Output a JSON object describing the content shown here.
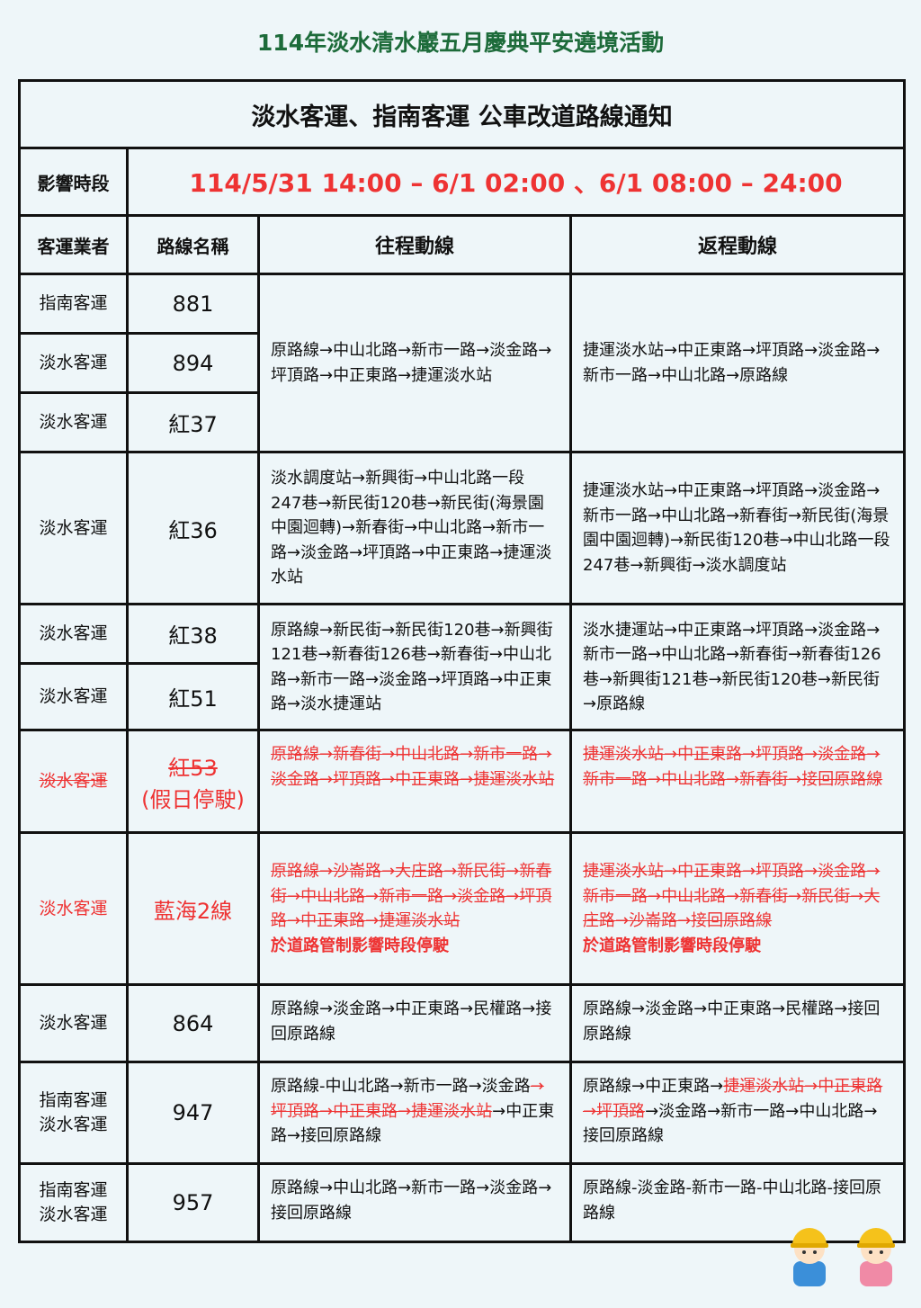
{
  "page_title": "114年淡水清水巖五月慶典平安遶境活動",
  "notice_title": "淡水客運、指南客運 公車改道路線通知",
  "period_label": "影響時段",
  "period_value": "114/5/31 14:00 – 6/1 02:00 、6/1 08:00 – 24:00",
  "headers": [
    "客運業者",
    "路線名稱",
    "往程動線",
    "返程動線"
  ],
  "colors": {
    "accent_red": "#ee3333",
    "title_green": "#1d6b3a",
    "background": "#eef6f9"
  },
  "rows": [
    {
      "operator": "指南客運",
      "route": "881"
    },
    {
      "operator": "淡水客運",
      "route": "894"
    },
    {
      "operator": "淡水客運",
      "route": "紅37"
    },
    {
      "operator": "淡水客運",
      "route": "紅36"
    },
    {
      "operator": "淡水客運",
      "route": "紅38"
    },
    {
      "operator": "淡水客運",
      "route": "紅51"
    },
    {
      "operator": "淡水客運",
      "route": "紅53",
      "route_note": "(假日停駛)",
      "suspended": true
    },
    {
      "operator": "淡水客運",
      "route": "藍海2線",
      "suspended": true
    },
    {
      "operator": "淡水客運",
      "route": "864"
    },
    {
      "operator": "指南客運",
      "operator2": "淡水客運",
      "route": "947"
    },
    {
      "operator": "指南客運",
      "operator2": "淡水客運",
      "route": "957"
    }
  ],
  "paths": {
    "g1_out": [
      {
        "t": "原路線→中山北路→新市一路→淡金路→坪頂路→中正東路→捷運淡水站",
        "s": "n"
      }
    ],
    "g1_back": [
      {
        "t": "捷運淡水站→中正東路→坪頂路→淡金路→新市一路→中山北路→原路線",
        "s": "n"
      }
    ],
    "r36_out": [
      {
        "t": "淡水調度站→新興街→中山北路一段 247巷→新民街120巷→新民街(海景園中園迴轉)→新春街→中山北路→新市一路→淡金路→坪頂路→中正東路→捷運淡水站",
        "s": "n"
      }
    ],
    "r36_back": [
      {
        "t": "捷運淡水站→中正東路→坪頂路→淡金路→新市一路→中山北路→新春街→新民街(海景園中園迴轉)→新民街120巷→中山北路一段247巷→新興街→淡水調度站",
        "s": "n"
      }
    ],
    "g2_out": [
      {
        "t": "原路線→新民街→新民街120巷→新興街121巷→新春街126巷→新春街→中山北路→新市一路→淡金路→坪頂路→中正東路→淡水捷運站",
        "s": "n"
      }
    ],
    "g2_back": [
      {
        "t": "淡水捷運站→中正東路→坪頂路→淡金路→新市一路→中山北路→新春街→新春街126巷→新興街121巷→新民街120巷→新民街→原路線",
        "s": "n"
      }
    ],
    "r53_out": [
      {
        "t": "原路線→新春街→中山北路→新市一路→淡金路→坪頂路→中正東路→捷運淡水站",
        "s": "x"
      }
    ],
    "r53_back": [
      {
        "t": "捷運淡水站→中正東路→坪頂路→淡金路→新市一路→中山北路→新春街→接回原路線",
        "s": "x"
      }
    ],
    "bh2_out": [
      {
        "t": "原路線→沙崙路→大庄路→新民街→新春街→中山北路→新市一路→淡金路→坪頂路→中正東路→捷運淡水站",
        "s": "x"
      },
      {
        "t": "於道路管制影響時段停駛",
        "s": "b"
      }
    ],
    "bh2_back": [
      {
        "t": "捷運淡水站→中正東路→坪頂路→淡金路→新市一路→中山北路→新春街→新民街→大庄路→沙崙路→接回原路線",
        "s": "x"
      },
      {
        "t": "於道路管制影響時段停駛",
        "s": "b"
      }
    ],
    "r864_out": [
      {
        "t": "原路線→淡金路→中正東路→民權路→接回原路線",
        "s": "n"
      }
    ],
    "r864_back": [
      {
        "t": "原路線→淡金路→中正東路→民權路→接回原路線",
        "s": "n"
      }
    ],
    "r947_out": [
      {
        "t": "原路線-中山北路→新市一路→淡金路",
        "s": "n"
      },
      {
        "t": "→坪頂路→中正東路→捷運淡水站",
        "s": "x"
      },
      {
        "t": "→中正東路→接回原路線",
        "s": "n"
      }
    ],
    "r947_back": [
      {
        "t": "原路線→中正東路→",
        "s": "n"
      },
      {
        "t": "捷運淡水站→中正東路→坪頂路",
        "s": "x"
      },
      {
        "t": "→淡金路→新市一路→中山北路→接回原路線",
        "s": "n"
      }
    ],
    "r957_out": [
      {
        "t": "原路線→中山北路→新市一路→淡金路→接回原路線",
        "s": "n"
      }
    ],
    "r957_back": [
      {
        "t": "原路線-淡金路-新市一路-中山北路-接回原路線",
        "s": "n"
      }
    ]
  }
}
